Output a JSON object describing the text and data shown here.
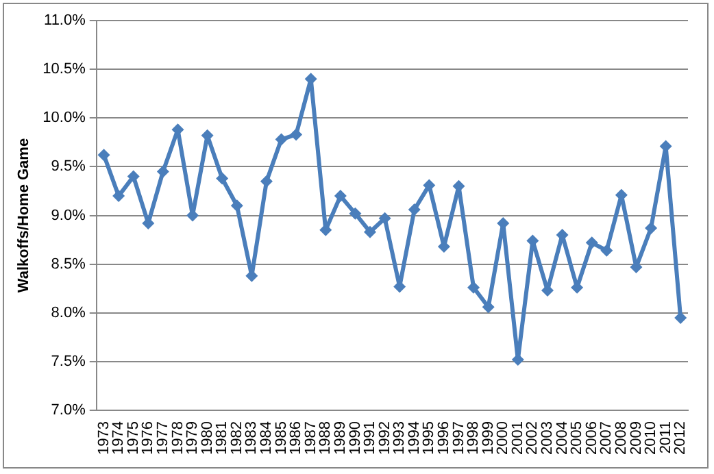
{
  "chart_data": {
    "type": "line",
    "ylabel": "Walkoffs/Home Game",
    "categories": [
      "1973",
      "1974",
      "1975",
      "1976",
      "1977",
      "1978",
      "1979",
      "1980",
      "1981",
      "1982",
      "1983",
      "1984",
      "1985",
      "1986",
      "1987",
      "1988",
      "1989",
      "1990",
      "1991",
      "1992",
      "1993",
      "1994",
      "1995",
      "1996",
      "1997",
      "1998",
      "1999",
      "2000",
      "2001",
      "2002",
      "2003",
      "2004",
      "2005",
      "2006",
      "2007",
      "2008",
      "2009",
      "2010",
      "2011",
      "2012"
    ],
    "series": [
      {
        "color": "#4a7ebb",
        "values": [
          9.62,
          9.2,
          9.4,
          8.92,
          9.45,
          9.88,
          9.0,
          9.82,
          9.38,
          9.1,
          8.38,
          9.35,
          9.78,
          9.83,
          10.4,
          8.85,
          9.2,
          9.02,
          8.83,
          8.97,
          8.27,
          9.06,
          9.31,
          8.68,
          9.3,
          8.26,
          8.06,
          8.92,
          7.52,
          8.74,
          8.23,
          8.8,
          8.26,
          8.72,
          8.64,
          9.21,
          8.47,
          8.87,
          9.71,
          7.95
        ]
      }
    ],
    "ylim": [
      7,
      11
    ],
    "yticks": [
      {
        "value": 7,
        "label": "7.0%"
      },
      {
        "value": 7.5,
        "label": "7.5%"
      },
      {
        "value": 8,
        "label": "8.0%"
      },
      {
        "value": 8.5,
        "label": "8.5%"
      },
      {
        "value": 9,
        "label": "9.0%"
      },
      {
        "value": 9.5,
        "label": "9.5%"
      },
      {
        "value": 10,
        "label": "10.0%"
      },
      {
        "value": 10.5,
        "label": "10.5%"
      },
      {
        "value": 11,
        "label": "11.0%"
      }
    ],
    "grid": "y",
    "legend": false,
    "marker": "diamond",
    "line_style": "solid"
  }
}
